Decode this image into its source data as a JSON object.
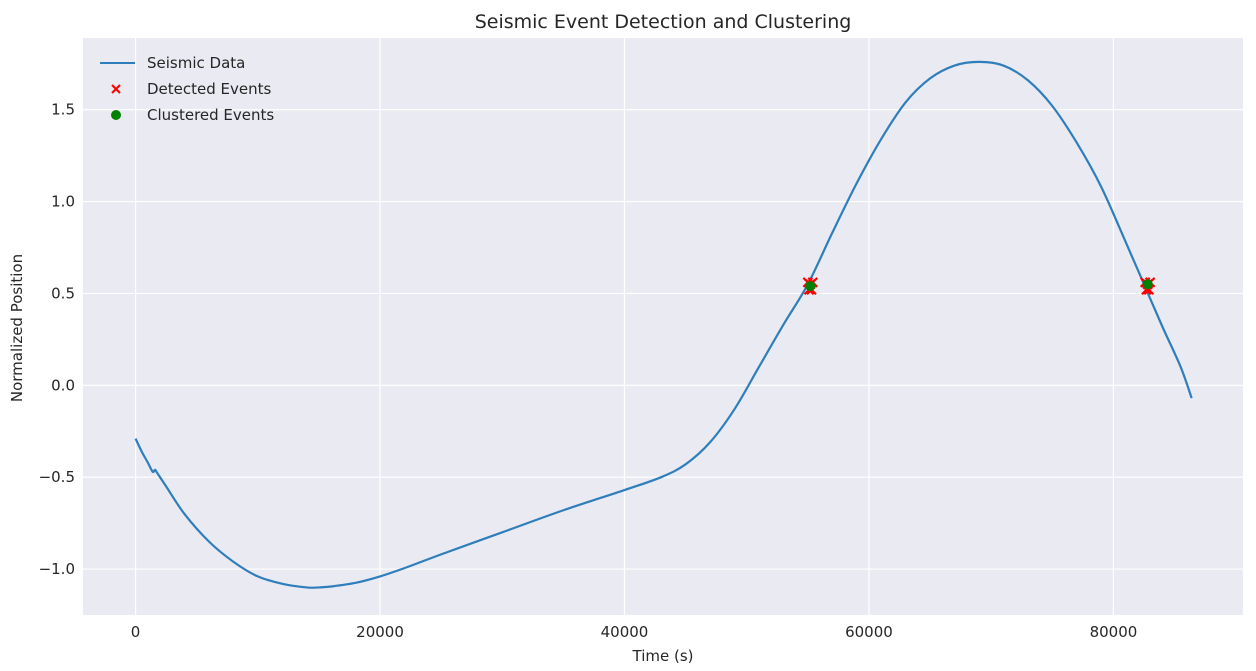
{
  "chart_data": {
    "type": "line",
    "title": "Seismic Event Detection and Clustering",
    "xlabel": "Time (s)",
    "ylabel": "Normalized Position",
    "xlim": [
      -4300,
      90600
    ],
    "ylim": [
      -1.25,
      1.89
    ],
    "x_ticks": [
      0,
      20000,
      40000,
      60000,
      80000
    ],
    "x_tick_labels": [
      "0",
      "20000",
      "40000",
      "60000",
      "80000"
    ],
    "y_ticks": [
      -1.0,
      -0.5,
      0.0,
      0.5,
      1.0,
      1.5
    ],
    "y_tick_labels": [
      "−1.0",
      "−0.5",
      "0.0",
      "0.5",
      "1.0",
      "1.5"
    ],
    "grid": true,
    "legend_position": "top-left",
    "colors": {
      "background": "#EAEAF2",
      "grid": "#FFFFFF",
      "line": "#2F7EBC",
      "detected": "#FF0000",
      "clustered": "#008000"
    },
    "series": [
      {
        "name": "Seismic Data",
        "kind": "line",
        "x": [
          0,
          500,
          1000,
          1400,
          1600,
          1800,
          2500,
          4000,
          6000,
          8000,
          10000,
          12000,
          14000,
          15000,
          16000,
          18000,
          20000,
          22000,
          25000,
          30000,
          35000,
          40000,
          43000,
          45000,
          47000,
          49000,
          51000,
          53000,
          55000,
          57000,
          59000,
          61000,
          63000,
          65000,
          67000,
          69000,
          71000,
          73000,
          75000,
          77000,
          79000,
          81000,
          82500,
          84000,
          85500,
          86400
        ],
        "y": [
          -0.29,
          -0.36,
          -0.42,
          -0.47,
          -0.46,
          -0.48,
          -0.55,
          -0.7,
          -0.85,
          -0.96,
          -1.04,
          -1.08,
          -1.1,
          -1.1,
          -1.095,
          -1.075,
          -1.04,
          -0.995,
          -0.92,
          -0.8,
          -0.68,
          -0.57,
          -0.5,
          -0.43,
          -0.31,
          -0.13,
          0.1,
          0.33,
          0.55,
          0.83,
          1.1,
          1.34,
          1.54,
          1.67,
          1.74,
          1.76,
          1.74,
          1.66,
          1.52,
          1.32,
          1.08,
          0.78,
          0.55,
          0.32,
          0.1,
          -0.07
        ]
      },
      {
        "name": "Detected Events",
        "kind": "scatter",
        "marker": "x",
        "x": [
          55000,
          55200,
          55400,
          55100,
          55300,
          82600,
          82800,
          83000,
          82700,
          82900
        ],
        "y": [
          0.56,
          0.55,
          0.56,
          0.52,
          0.52,
          0.56,
          0.55,
          0.56,
          0.52,
          0.52
        ]
      },
      {
        "name": "Clustered Events",
        "kind": "scatter",
        "marker": "o",
        "x": [
          55200,
          82800
        ],
        "y": [
          0.54,
          0.55
        ]
      }
    ]
  }
}
